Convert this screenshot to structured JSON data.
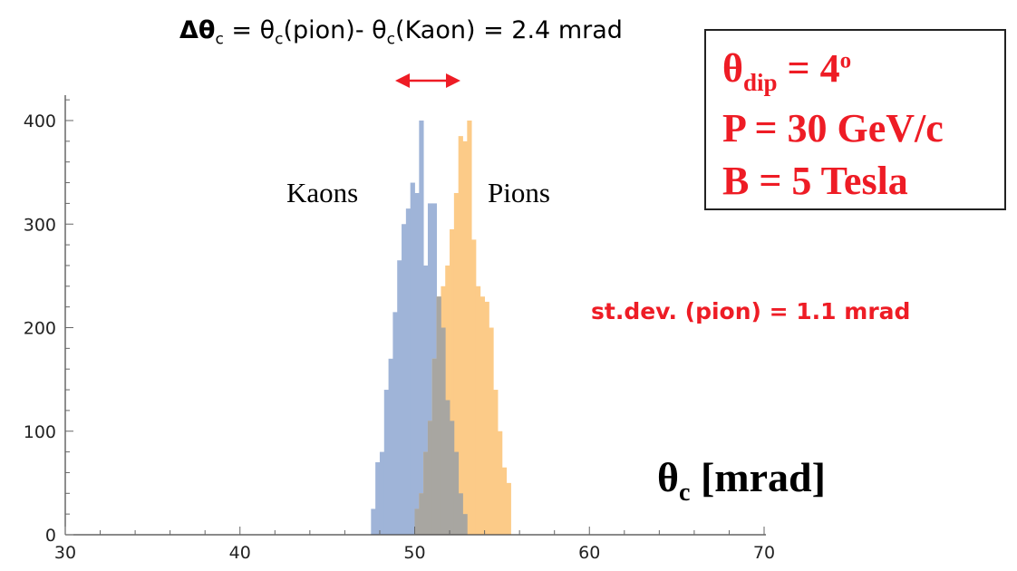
{
  "chart_data": {
    "type": "histogram",
    "title": {
      "delta_symbol": "Δθ",
      "delta_sub": "c",
      "eq1": " = θ",
      "sub1": "c",
      "mid": "(pion)- θ",
      "sub2": "c",
      "tail": "(Kaon) = 2.4 mrad"
    },
    "xlabel": {
      "symbol": "θ",
      "sub": "c",
      "unit": " [mrad]"
    },
    "xlim": [
      30,
      70
    ],
    "ylim": [
      0,
      420
    ],
    "xticks": [
      "30",
      "40",
      "50",
      "60",
      "70"
    ],
    "yticks": [
      "0",
      "100",
      "200",
      "300",
      "400"
    ],
    "bin_width": 0.25,
    "series": [
      {
        "name": "Kaons",
        "color": "#9fb4d8",
        "start": 47.5,
        "counts": [
          25,
          70,
          80,
          140,
          170,
          215,
          265,
          300,
          315,
          340,
          330,
          400,
          260,
          320,
          320,
          230,
          200,
          130,
          110,
          80,
          40,
          20
        ]
      },
      {
        "name": "Pions",
        "color": "#fccb88",
        "start": 50.0,
        "counts": [
          25,
          40,
          80,
          110,
          170,
          230,
          240,
          260,
          295,
          330,
          385,
          380,
          400,
          285,
          240,
          230,
          225,
          200,
          140,
          100,
          65,
          50
        ]
      }
    ],
    "overlap_color": "#a8a6a1",
    "arrow_color": "#ee1c25"
  },
  "params": {
    "theta": "θ",
    "theta_sub": "dip",
    "theta_val": " = 4",
    "theta_sup": "o",
    "momentum": "P = 30 GeV/c",
    "field": "B = 5 Tesla"
  },
  "stdev": {
    "pre": "st.dev",
    "paren": ". (pion) = 1.1 mrad"
  }
}
